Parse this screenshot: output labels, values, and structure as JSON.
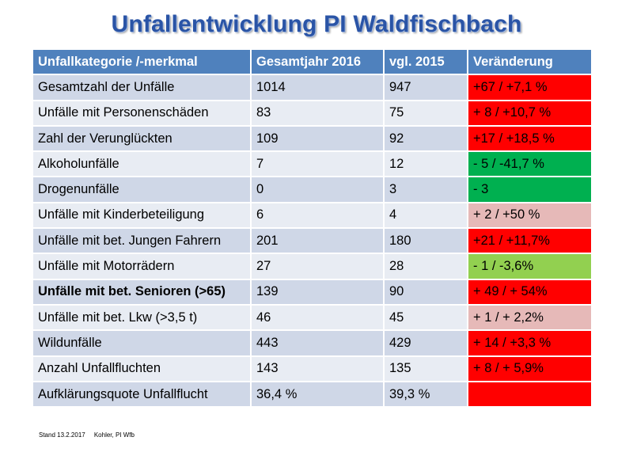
{
  "title": "Unfallentwicklung PI Waldfischbach",
  "table": {
    "headers": [
      "Unfallkategorie /-merkmal",
      "Gesamtjahr 2016",
      "vgl. 2015",
      "Veränderung"
    ],
    "rows": [
      {
        "category": "Gesamtzahl der Unfälle",
        "y2016": "1014",
        "y2015": "947",
        "change": "+67  /  +7,1 %",
        "change_color": "#ff0000",
        "label_style": "normal"
      },
      {
        "category": "Unfälle mit Personenschäden",
        "y2016": "   83",
        "y2015": "  75",
        "change": "+ 8   /  +10,7 %",
        "change_color": "#ff0000",
        "label_style": "normal"
      },
      {
        "category": "Zahl der Verunglückten",
        "y2016": "  109",
        "y2015": "  92",
        "change": "+17 /   +18,5 %",
        "change_color": "#ff0000",
        "label_style": "normal"
      },
      {
        "category": "Alkoholunfälle",
        "y2016": "     7",
        "y2015": "  12",
        "change": "-  5  /   -41,7 %",
        "change_color": "#00b050",
        "label_style": "normal"
      },
      {
        "category": "Drogenunfälle",
        "y2016": "     0",
        "y2015": "    3",
        "change": "-  3",
        "change_color": "#00b050",
        "label_style": "normal"
      },
      {
        "category": "Unfälle mit Kinderbeteiligung",
        "y2016": "     6",
        "y2015": "    4",
        "change": "+ 2  /    +50 %",
        "change_color": "#e6b9b8",
        "label_style": "normal"
      },
      {
        "category": "Unfälle mit bet. Jungen Fahrern",
        "y2016": "  201",
        "y2015": "180",
        "change": "+21 /   +11,7%",
        "change_color": "#ff0000",
        "label_style": "red"
      },
      {
        "category": "Unfälle mit Motorrädern",
        "y2016": "   27",
        "y2015": "  28",
        "change": "-  1  /  -3,6%",
        "change_color": "#92d050",
        "label_style": "normal"
      },
      {
        "category": "Unfälle mit bet. Senioren (>65)",
        "y2016": "139",
        "y2015": "  90",
        "change": "+ 49 / + 54%",
        "change_color": "#ff0000",
        "label_style": "redbold"
      },
      {
        "category": "Unfälle mit bet. Lkw (>3,5 t)",
        "y2016": "   46",
        "y2015": "  45",
        "change": "+  1 /  + 2,2%",
        "change_color": "#e6b9b8",
        "label_style": "normal"
      },
      {
        "category": "Wildunfälle",
        "y2016": "  443",
        "y2015": "429",
        "change": "+ 14 /  +3,3 %",
        "change_color": "#ff0000",
        "label_style": "normal"
      },
      {
        "category": "Anzahl Unfallfluchten",
        "y2016": "  143",
        "y2015": "135",
        "change": "+  8  /  + 5,9%",
        "change_color": "#ff0000",
        "label_style": "normal"
      },
      {
        "category": "Aufklärungsquote Unfallflucht",
        "y2016": "  36,4 %",
        "y2015": " 39,3 %",
        "change": "",
        "change_color": "#ff0000",
        "label_style": "normal"
      }
    ]
  },
  "footer": {
    "stand": "Stand 13.2.2017",
    "author": "Kohler, PI Wfb"
  },
  "colors": {
    "title": "#2a54a6",
    "header_bg": "#4f81bd",
    "row_odd": "#cfd7e7",
    "row_even": "#e8ecf3",
    "red_label": "#ff0000"
  }
}
